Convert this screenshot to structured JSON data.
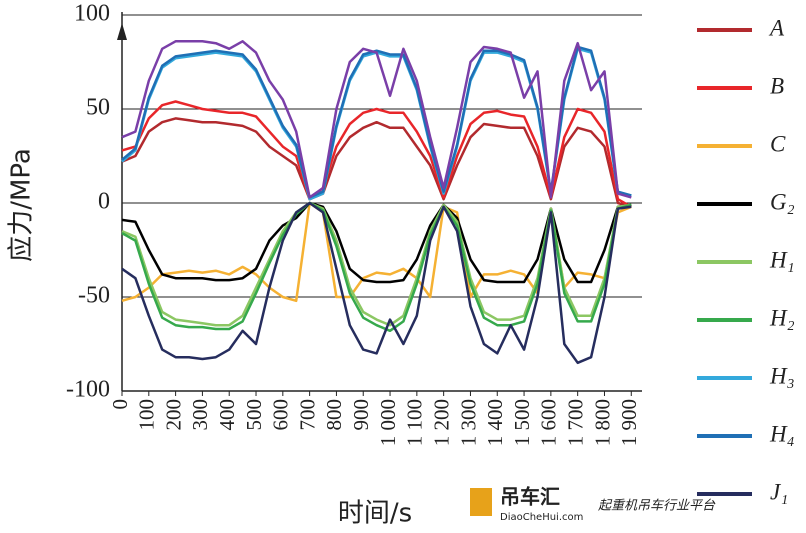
{
  "chart_data": {
    "type": "line",
    "ylabel": "应力/MPa",
    "xlabel": "时间/s",
    "x": [
      0,
      50,
      100,
      150,
      200,
      250,
      300,
      350,
      400,
      450,
      500,
      550,
      600,
      650,
      700,
      750,
      800,
      850,
      900,
      950,
      1000,
      1050,
      1100,
      1150,
      1200,
      1250,
      1300,
      1350,
      1400,
      1450,
      1500,
      1550,
      1600,
      1650,
      1700,
      1750,
      1800,
      1850,
      1900
    ],
    "xlim": [
      0,
      1940
    ],
    "xticks": [
      0,
      100,
      200,
      300,
      400,
      500,
      600,
      700,
      800,
      900,
      {
        "value": 1000,
        "label": "1 000"
      },
      {
        "value": 1100,
        "label": "1 100"
      },
      {
        "value": 1200,
        "label": "1 200"
      },
      {
        "value": 1300,
        "label": "1 300"
      },
      {
        "value": 1400,
        "label": "1 400"
      },
      {
        "value": 1500,
        "label": "1 500"
      },
      {
        "value": 1600,
        "label": "1 600"
      },
      {
        "value": 1700,
        "label": "1 700"
      },
      {
        "value": 1800,
        "label": "1 800"
      },
      {
        "value": 1900,
        "label": "1 900"
      }
    ],
    "ylim": [
      -100,
      100
    ],
    "yticks": [
      -100,
      -50,
      0,
      50,
      100
    ],
    "grid": true,
    "series": [
      {
        "name": "A",
        "color": "#b22a2e",
        "values": [
          22,
          25,
          38,
          43,
          45,
          44,
          43,
          43,
          42,
          41,
          38,
          30,
          25,
          20,
          2,
          5,
          25,
          35,
          40,
          43,
          40,
          40,
          30,
          20,
          2,
          20,
          35,
          42,
          41,
          40,
          40,
          25,
          2,
          30,
          40,
          38,
          30,
          0,
          -2
        ]
      },
      {
        "name": "B",
        "color": "#e8262a",
        "values": [
          28,
          30,
          45,
          52,
          54,
          52,
          50,
          49,
          48,
          48,
          46,
          38,
          30,
          25,
          2,
          8,
          30,
          42,
          48,
          50,
          48,
          48,
          38,
          25,
          3,
          25,
          42,
          48,
          49,
          47,
          46,
          30,
          3,
          35,
          50,
          48,
          38,
          2,
          -2
        ]
      },
      {
        "name": "C",
        "color": "#f5b133",
        "values": [
          -52,
          -50,
          -45,
          -38,
          -37,
          -36,
          -37,
          -36,
          -38,
          -34,
          -38,
          -45,
          -50,
          -52,
          0,
          -5,
          -50,
          -50,
          -40,
          -37,
          -38,
          -35,
          -40,
          -50,
          -2,
          -5,
          -50,
          -38,
          -38,
          -36,
          -38,
          -48,
          -3,
          -45,
          -37,
          -38,
          -40,
          -5,
          -2
        ]
      },
      {
        "name": "G₂",
        "color": "#000000",
        "values": [
          -9,
          -10,
          -25,
          -38,
          -40,
          -40,
          -40,
          -41,
          -41,
          -40,
          -35,
          -20,
          -12,
          -8,
          0,
          -2,
          -15,
          -35,
          -41,
          -42,
          -42,
          -41,
          -30,
          -12,
          -1,
          -8,
          -30,
          -41,
          -42,
          -42,
          -42,
          -30,
          -3,
          -30,
          -42,
          -42,
          -25,
          -2,
          -1
        ]
      },
      {
        "name": "H₁",
        "color": "#8cc763",
        "values": [
          -15,
          -18,
          -40,
          -58,
          -62,
          -63,
          -64,
          -65,
          -65,
          -60,
          -45,
          -30,
          -15,
          -5,
          0,
          -3,
          -20,
          -45,
          -58,
          -62,
          -65,
          -60,
          -40,
          -15,
          -1,
          -10,
          -40,
          -58,
          -62,
          -62,
          -60,
          -40,
          -3,
          -45,
          -60,
          -60,
          -40,
          -2,
          -1
        ]
      },
      {
        "name": "H₂",
        "color": "#36a94c",
        "values": [
          -16,
          -20,
          -43,
          -61,
          -65,
          -66,
          -66,
          -67,
          -67,
          -63,
          -48,
          -32,
          -17,
          -6,
          0,
          -4,
          -23,
          -48,
          -61,
          -65,
          -68,
          -63,
          -43,
          -17,
          -2,
          -12,
          -43,
          -61,
          -65,
          -65,
          -63,
          -43,
          -4,
          -48,
          -63,
          -63,
          -43,
          -3,
          -1
        ]
      },
      {
        "name": "H₃",
        "color": "#33a9dc",
        "values": [
          22,
          28,
          55,
          72,
          77,
          78,
          79,
          80,
          79,
          78,
          70,
          55,
          40,
          30,
          2,
          5,
          40,
          65,
          78,
          80,
          78,
          78,
          60,
          30,
          5,
          30,
          65,
          80,
          80,
          78,
          75,
          50,
          5,
          55,
          82,
          80,
          55,
          5,
          4
        ]
      },
      {
        "name": "H₄",
        "color": "#1f6fb5",
        "values": [
          23,
          29,
          56,
          73,
          78,
          79,
          80,
          81,
          80,
          79,
          71,
          56,
          41,
          31,
          3,
          6,
          41,
          66,
          79,
          81,
          79,
          79,
          61,
          31,
          6,
          31,
          66,
          81,
          81,
          79,
          76,
          51,
          6,
          56,
          83,
          81,
          56,
          6,
          4
        ]
      },
      {
        "name": "J₁",
        "color": "#262d5e",
        "values": [
          -35,
          -40,
          -60,
          -78,
          -82,
          -82,
          -83,
          -82,
          -78,
          -68,
          -75,
          -45,
          -20,
          -5,
          0,
          -5,
          -35,
          -65,
          -78,
          -80,
          -62,
          -75,
          -60,
          -20,
          -2,
          -15,
          -55,
          -75,
          -80,
          -65,
          -78,
          -50,
          -5,
          -75,
          -85,
          -82,
          -50,
          -3,
          -2
        ]
      },
      {
        "color": "#7a3fa8",
        "values": [
          35,
          38,
          65,
          82,
          86,
          86,
          86,
          85,
          82,
          86,
          80,
          65,
          55,
          38,
          3,
          8,
          50,
          75,
          82,
          80,
          57,
          82,
          65,
          35,
          8,
          40,
          75,
          83,
          82,
          80,
          56,
          70,
          3,
          65,
          85,
          60,
          70,
          5,
          3
        ]
      }
    ],
    "watermark": {
      "brand": "吊车汇",
      "site": "DiaoCheHui.com",
      "slogan": "起重机吊车行业平台"
    }
  }
}
